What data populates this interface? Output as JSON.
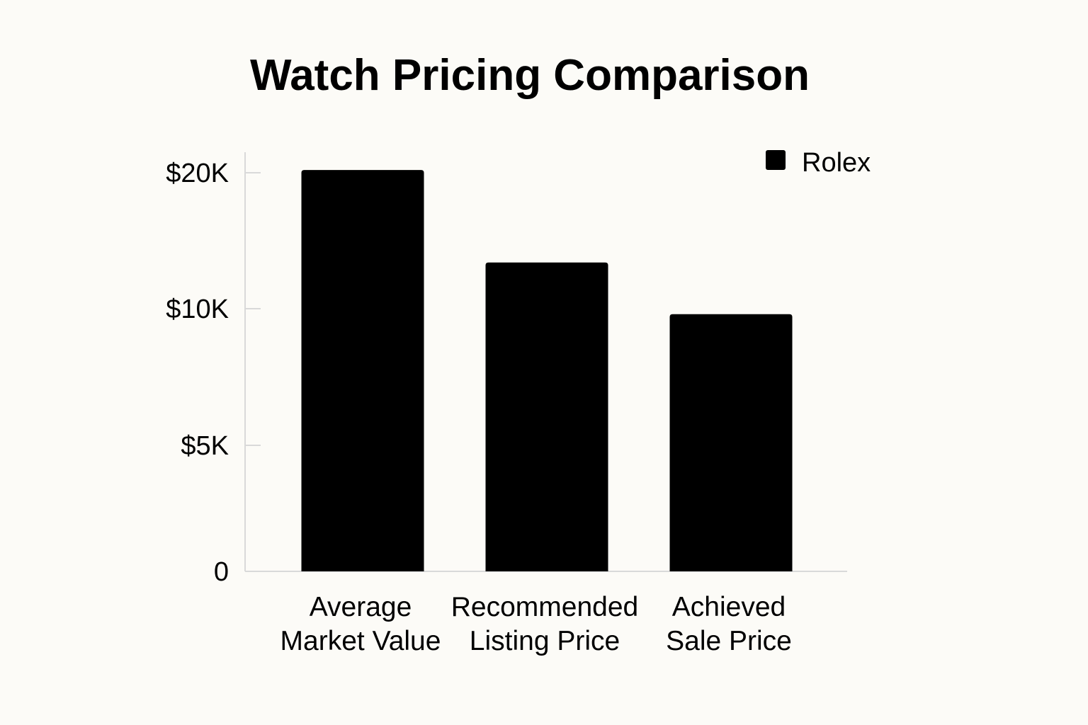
{
  "chart_data": {
    "type": "bar",
    "title": "Watch Pricing Comparison",
    "xlabel": "",
    "ylabel": "",
    "categories": [
      [
        "Average",
        "Market Value"
      ],
      [
        "Recommended",
        "Listing Price"
      ],
      [
        "Achieved",
        "Sale Price"
      ]
    ],
    "series": [
      {
        "name": "Rolex",
        "color": "#000000",
        "values": [
          20200,
          13400,
          9800
        ]
      }
    ],
    "yticks": [
      {
        "value": 0,
        "label": "0"
      },
      {
        "value": 5000,
        "label": "$5K"
      },
      {
        "value": 10000,
        "label": "$10K"
      },
      {
        "value": 20000,
        "label": "$20K"
      }
    ],
    "ylim": [
      0,
      20000
    ],
    "grid": false,
    "legend_position": "top-right",
    "colors": {
      "background": "#fcfbf7",
      "axis": "#d9d9d9"
    }
  }
}
